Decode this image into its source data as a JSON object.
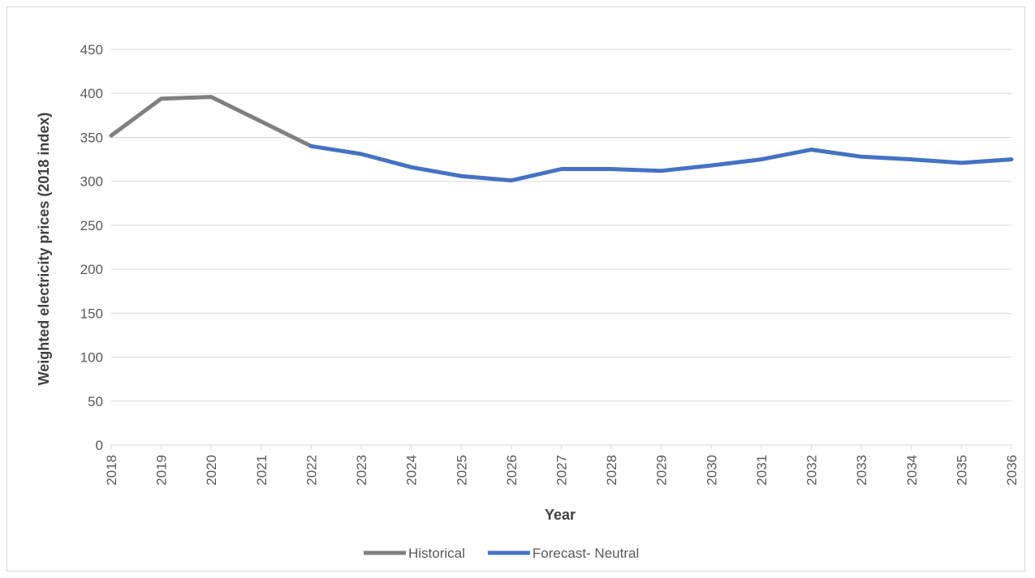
{
  "chart_data": {
    "type": "line",
    "title": "",
    "xlabel": "Year",
    "ylabel": "Weighted electricity prices (2018 index)",
    "ylim": [
      0,
      450
    ],
    "yticks": [
      0,
      50,
      100,
      150,
      200,
      250,
      300,
      350,
      400,
      450
    ],
    "grid": true,
    "legend_position": "bottom",
    "categories": [
      "2018",
      "2019",
      "2020",
      "2021",
      "2022",
      "2023",
      "2024",
      "2025",
      "2026",
      "2027",
      "2028",
      "2029",
      "2030",
      "2031",
      "2032",
      "2033",
      "2034",
      "2035",
      "2036"
    ],
    "series": [
      {
        "name": "Historical",
        "color": "#808080",
        "values": [
          352,
          394,
          396,
          368,
          340,
          null,
          null,
          null,
          null,
          null,
          null,
          null,
          null,
          null,
          null,
          null,
          null,
          null,
          null
        ]
      },
      {
        "name": "Forecast- Neutral",
        "color": "#4472c4",
        "values": [
          null,
          null,
          null,
          null,
          340,
          331,
          316,
          306,
          301,
          314,
          314,
          312,
          318,
          325,
          336,
          328,
          325,
          321,
          325
        ]
      }
    ]
  }
}
